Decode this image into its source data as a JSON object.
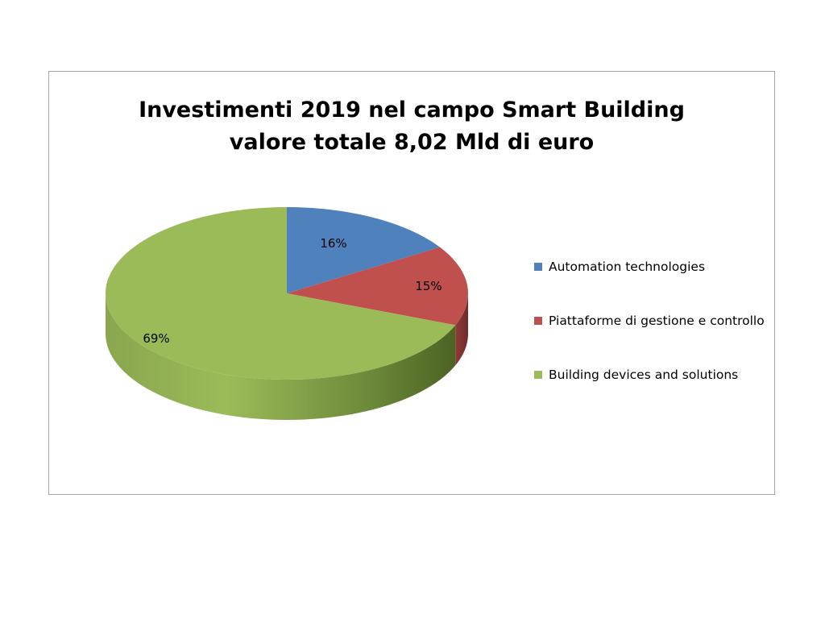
{
  "chart_data": {
    "type": "pie",
    "title_lines": [
      "Investimenti 2019 nel campo Smart Building",
      "valore totale 8,02 Mld di euro"
    ],
    "slices": [
      {
        "label": "Automation technologies",
        "value": 16,
        "data_label": "16%",
        "color": "#4f81bd"
      },
      {
        "label": "Piattaforme di gestione e controllo",
        "value": 15,
        "data_label": "15%",
        "color": "#c0504d"
      },
      {
        "label": "Building devices and solutions",
        "value": 69,
        "data_label": "69%",
        "color": "#9bbb59"
      }
    ],
    "style": "3d",
    "legend_position": "right"
  }
}
